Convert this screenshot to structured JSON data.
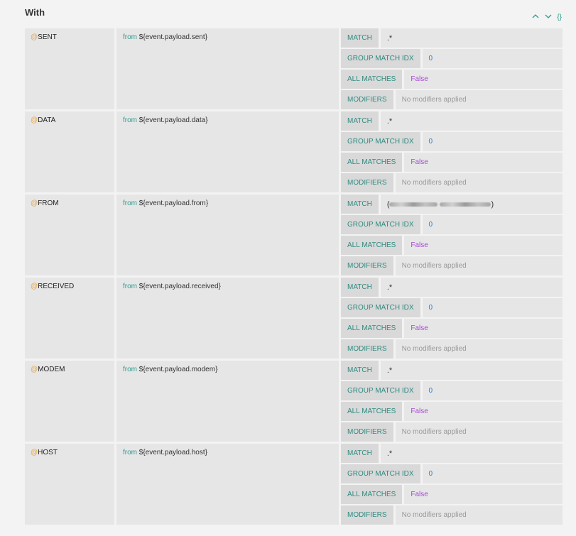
{
  "header": {
    "title": "With",
    "braces_label": "{}"
  },
  "labels": {
    "match": "MATCH",
    "group_match_idx": "GROUP MATCH IDX",
    "all_matches": "ALL MATCHES",
    "modifiers": "MODIFIERS"
  },
  "rows": [
    {
      "at": "@",
      "name": "SENT",
      "from_kw": "from",
      "from_expr": "${event.payload.sent}",
      "match": ".*",
      "group_idx": "0",
      "all_matches": "False",
      "modifiers": "No modifiers applied"
    },
    {
      "at": "@",
      "name": "DATA",
      "from_kw": "from",
      "from_expr": "${event.payload.data}",
      "match": ".*",
      "group_idx": "0",
      "all_matches": "False",
      "modifiers": "No modifiers applied"
    },
    {
      "at": "@",
      "name": "FROM",
      "from_kw": "from",
      "from_expr": "${event.payload.from}",
      "match_prefix": "(",
      "match_suffix": ")",
      "group_idx": "0",
      "all_matches": "False",
      "modifiers": "No modifiers applied"
    },
    {
      "at": "@",
      "name": "RECEIVED",
      "from_kw": "from",
      "from_expr": "${event.payload.received}",
      "match": ".*",
      "group_idx": "0",
      "all_matches": "False",
      "modifiers": "No modifiers applied"
    },
    {
      "at": "@",
      "name": "MODEM",
      "from_kw": "from",
      "from_expr": "${event.payload.modem}",
      "match": ".*",
      "group_idx": "0",
      "all_matches": "False",
      "modifiers": "No modifiers applied"
    },
    {
      "at": "@",
      "name": "HOST",
      "from_kw": "from",
      "from_expr": "${event.payload.host}",
      "match": ".*",
      "group_idx": "0",
      "all_matches": "False",
      "modifiers": "No modifiers applied"
    }
  ]
}
